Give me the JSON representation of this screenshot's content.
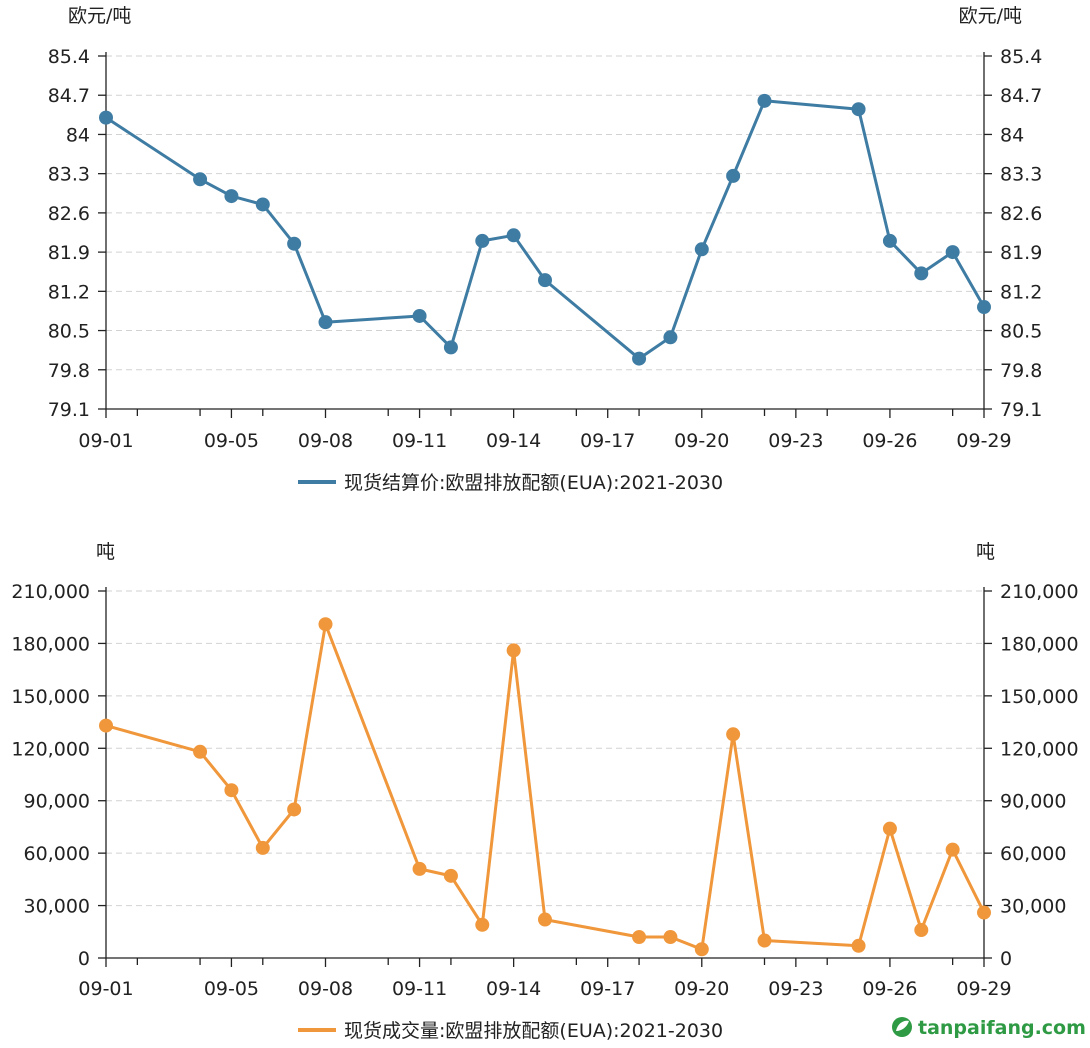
{
  "chart_data": [
    {
      "type": "line",
      "title": "",
      "unit_left": "欧元/吨",
      "unit_right": "欧元/吨",
      "xlabel": "",
      "ylabel": "欧元/吨",
      "x_tick_labels": [
        "09-01",
        "09-05",
        "09-08",
        "09-11",
        "09-14",
        "09-17",
        "09-20",
        "09-23",
        "09-26",
        "09-29"
      ],
      "ylim": [
        79.1,
        85.4
      ],
      "y_tick_labels": [
        "85.4",
        "84.7",
        "84",
        "83.3",
        "82.6",
        "81.9",
        "81.2",
        "80.5",
        "79.8",
        "79.1"
      ],
      "legend": "现货结算价:欧盟排放配额(EUA):2021-2030",
      "legend_position": "bottom-center",
      "color": "#3f7ca3",
      "series": [
        {
          "name": "现货结算价:欧盟排放配额(EUA):2021-2030",
          "points": [
            {
              "day": 1,
              "value": 84.3
            },
            {
              "day": 4,
              "value": 83.2
            },
            {
              "day": 5,
              "value": 82.9
            },
            {
              "day": 6,
              "value": 82.75
            },
            {
              "day": 7,
              "value": 82.05
            },
            {
              "day": 8,
              "value": 80.65
            },
            {
              "day": 11,
              "value": 80.76
            },
            {
              "day": 12,
              "value": 80.2
            },
            {
              "day": 13,
              "value": 82.1
            },
            {
              "day": 14,
              "value": 82.2
            },
            {
              "day": 15,
              "value": 81.4
            },
            {
              "day": 18,
              "value": 80.0
            },
            {
              "day": 19,
              "value": 80.38
            },
            {
              "day": 20,
              "value": 81.95
            },
            {
              "day": 21,
              "value": 83.26
            },
            {
              "day": 22,
              "value": 84.6
            },
            {
              "day": 25,
              "value": 84.45
            },
            {
              "day": 26,
              "value": 82.1
            },
            {
              "day": 27,
              "value": 81.52
            },
            {
              "day": 28,
              "value": 81.9
            },
            {
              "day": 29,
              "value": 80.92
            }
          ]
        }
      ]
    },
    {
      "type": "line",
      "title": "",
      "unit_left": "吨",
      "unit_right": "吨",
      "xlabel": "",
      "ylabel": "吨",
      "x_tick_labels": [
        "09-01",
        "09-05",
        "09-08",
        "09-11",
        "09-14",
        "09-17",
        "09-20",
        "09-23",
        "09-26",
        "09-29"
      ],
      "ylim": [
        0,
        210000
      ],
      "y_tick_labels": [
        "210,000",
        "180,000",
        "150,000",
        "120,000",
        "90,000",
        "60,000",
        "30,000",
        "0"
      ],
      "legend": "现货成交量:欧盟排放配额(EUA):2021-2030",
      "legend_position": "bottom-center",
      "color": "#f0973b",
      "series": [
        {
          "name": "现货成交量:欧盟排放配额(EUA):2021-2030",
          "points": [
            {
              "day": 1,
              "value": 133000
            },
            {
              "day": 4,
              "value": 118000
            },
            {
              "day": 5,
              "value": 96000
            },
            {
              "day": 6,
              "value": 63000
            },
            {
              "day": 7,
              "value": 85000
            },
            {
              "day": 8,
              "value": 191000
            },
            {
              "day": 11,
              "value": 51000
            },
            {
              "day": 12,
              "value": 47000
            },
            {
              "day": 13,
              "value": 19000
            },
            {
              "day": 14,
              "value": 176000
            },
            {
              "day": 15,
              "value": 22000
            },
            {
              "day": 18,
              "value": 12000
            },
            {
              "day": 19,
              "value": 12000
            },
            {
              "day": 20,
              "value": 5000
            },
            {
              "day": 21,
              "value": 128000
            },
            {
              "day": 22,
              "value": 10000
            },
            {
              "day": 25,
              "value": 7000
            },
            {
              "day": 26,
              "value": 74000
            },
            {
              "day": 27,
              "value": 16000
            },
            {
              "day": 28,
              "value": 62000
            },
            {
              "day": 29,
              "value": 26000
            }
          ]
        }
      ]
    }
  ],
  "watermark": {
    "text": "tanpaifang.com",
    "icon": "leaf-logo-icon",
    "color": "#2e9a44"
  }
}
